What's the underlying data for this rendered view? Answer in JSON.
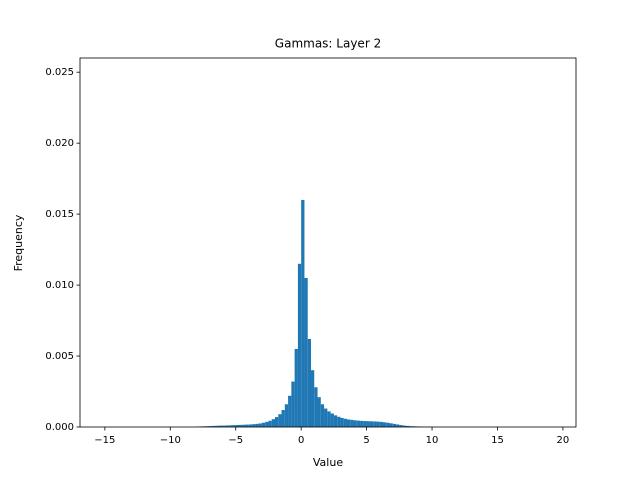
{
  "chart_data": {
    "type": "histogram",
    "title": "Gammas: Layer 2",
    "x_label": "Value",
    "y_label": "Frequency",
    "color": "#1f77b4",
    "bins": [
      -8,
      -7.75,
      -7.5,
      -7.25,
      -7,
      -6.75,
      -6.5,
      -6.25,
      -6,
      -5.75,
      -5.5,
      -5.25,
      -5,
      -4.75,
      -4.5,
      -4.25,
      -4,
      -3.75,
      -3.5,
      -3.25,
      -3,
      -2.75,
      -2.5,
      -2.25,
      -2,
      -1.75,
      -1.5,
      -1.25,
      -1,
      -0.75,
      -0.5,
      -0.25,
      0,
      0.25,
      0.5,
      0.75,
      1,
      1.25,
      1.5,
      1.75,
      2,
      2.25,
      2.5,
      2.75,
      3,
      3.25,
      3.5,
      3.75,
      4,
      4.25,
      4.5,
      4.75,
      5,
      5.25,
      5.5,
      5.75,
      6,
      6.25,
      6.5,
      6.75,
      7,
      7.25,
      7.5,
      7.75,
      8,
      8.25,
      8.5,
      8.75,
      9,
      9.25,
      9.5,
      9.75,
      10
    ],
    "counts": [
      3e-05,
      4e-05,
      5e-05,
      6e-05,
      7e-05,
      8e-05,
      9e-05,
      0.0001,
      0.0001,
      0.00011,
      0.00012,
      0.00013,
      0.00014,
      0.00015,
      0.00016,
      0.00017,
      0.00018,
      0.0002,
      0.00022,
      0.00025,
      0.0003,
      0.00036,
      0.00044,
      0.00055,
      0.0007,
      0.0009,
      0.0012,
      0.0016,
      0.0022,
      0.0032,
      0.0055,
      0.0115,
      0.016,
      0.0105,
      0.0062,
      0.004,
      0.0028,
      0.0021,
      0.0016,
      0.0013,
      0.0011,
      0.00095,
      0.00082,
      0.00072,
      0.00064,
      0.00058,
      0.00053,
      0.0005,
      0.00047,
      0.00045,
      0.00043,
      0.00042,
      0.00041,
      0.0004,
      0.00039,
      0.00038,
      0.00036,
      0.00033,
      0.0003,
      0.00026,
      0.00022,
      0.00018,
      0.00014,
      0.0001,
      8e-05,
      6e-05,
      5e-05,
      4e-05,
      3e-05,
      2e-05,
      2e-05,
      1e-05
    ],
    "xlim": [
      -16.9,
      21.0
    ],
    "xticks": [
      {
        "value": -15,
        "label": "−15"
      },
      {
        "value": -10,
        "label": "−10"
      },
      {
        "value": -5,
        "label": "−5"
      },
      0,
      5,
      10,
      15,
      20
    ],
    "ylim": [
      0,
      0.026
    ],
    "yticks": [
      {
        "value": 0,
        "label": "0.000"
      },
      0.005,
      {
        "value": 0.01,
        "label": "0.010"
      },
      0.015,
      {
        "value": 0.02,
        "label": "0.020"
      },
      0.025
    ]
  }
}
